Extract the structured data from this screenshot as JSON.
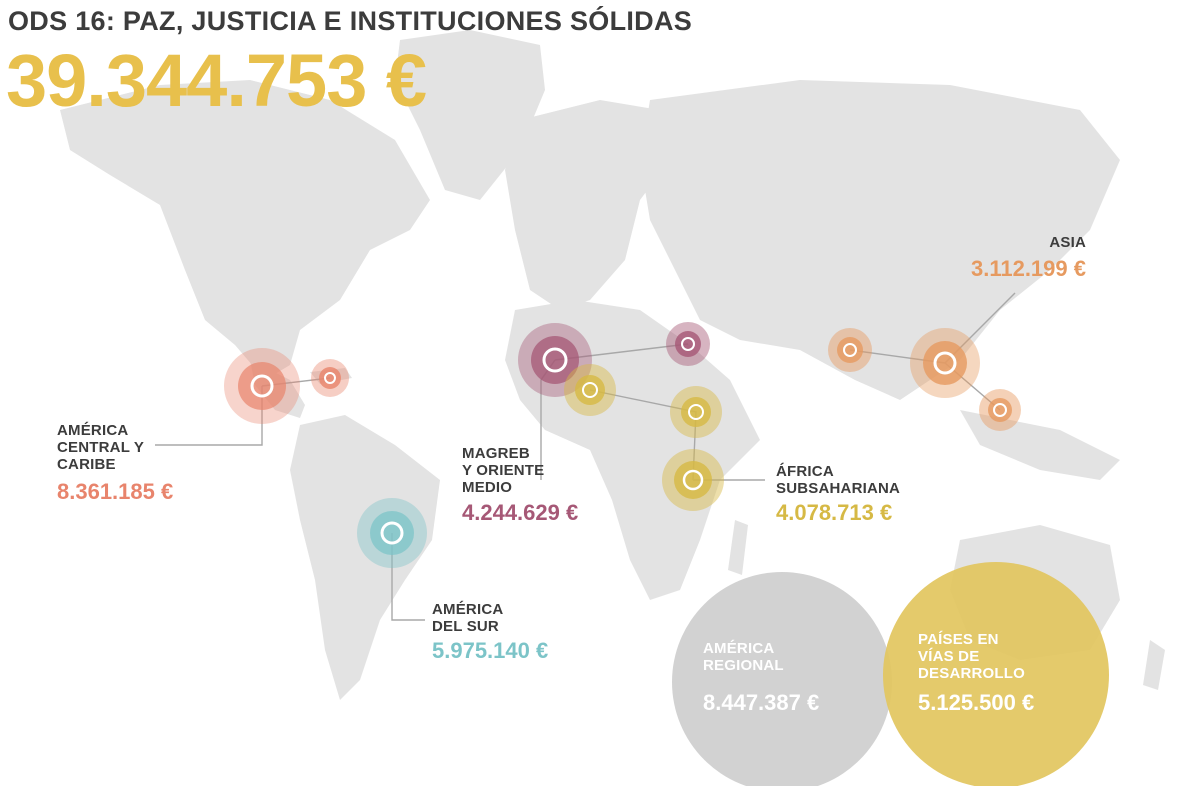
{
  "title": "ODS 16: PAZ, JUSTICIA E INSTITUCIONES SÓLIDAS",
  "total": "39.344.753 €",
  "colors": {
    "total": "#e8c04c",
    "map_land": "#e3e3e3",
    "america_central": "#e8846c",
    "america_sur": "#7cc4c8",
    "magreb": "#a65876",
    "africa": "#d6b945",
    "asia": "#e69a60",
    "america_regional": "#d0d0d0",
    "paises_desarrollo": "#e2c55e"
  },
  "regions": {
    "america_central": {
      "label": "AMÉRICA\nCENTRAL Y\nCARIBE",
      "amount": "8.361.185 €"
    },
    "america_sur": {
      "label": "AMÉRICA\nDEL SUR",
      "amount": "5.975.140 €"
    },
    "magreb": {
      "label": "MAGREB\nY ORIENTE\nMEDIO",
      "amount": "4.244.629 €"
    },
    "africa": {
      "label": "ÁFRICA\nSUBSAHARIANA",
      "amount": "4.078.713 €"
    },
    "asia": {
      "label": "ASIA",
      "amount": "3.112.199 €"
    },
    "america_regional": {
      "label": "AMÉRICA\nREGIONAL",
      "amount": "8.447.387 €"
    },
    "paises_desarrollo": {
      "label": "PAÍSES EN\nVÍAS DE\nDESARROLLO",
      "amount": "5.125.500 €"
    }
  }
}
